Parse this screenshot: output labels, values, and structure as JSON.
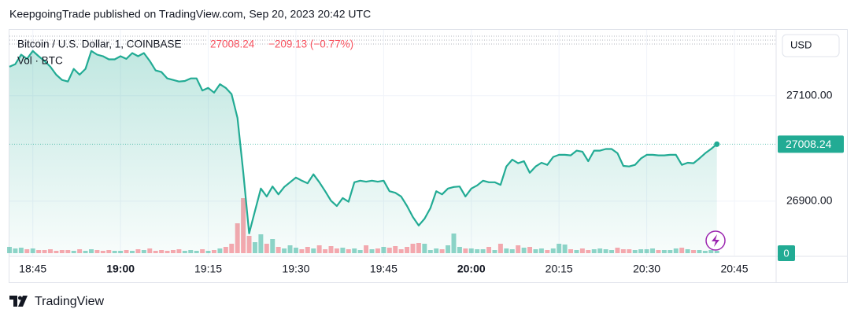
{
  "header": {
    "byline": "KeepgoingTrade published on TradingView.com, Sep 20, 2023 20:42 UTC"
  },
  "chart_data": {
    "type": "line",
    "title": "Bitcoin / U.S. Dollar, 1, COINBASE",
    "change": "−209.13 (−0.77%)",
    "currency": "USD",
    "color": "#22ab94",
    "grid": true,
    "x": [
      "18:41",
      "18:42",
      "18:43",
      "18:44",
      "18:45",
      "18:46",
      "18:47",
      "18:48",
      "18:49",
      "18:50",
      "18:51",
      "18:52",
      "18:53",
      "18:54",
      "18:55",
      "18:56",
      "18:57",
      "18:58",
      "18:59",
      "19:00",
      "19:01",
      "19:02",
      "19:03",
      "19:04",
      "19:05",
      "19:06",
      "19:07",
      "19:08",
      "19:09",
      "19:10",
      "19:11",
      "19:12",
      "19:13",
      "19:14",
      "19:15",
      "19:16",
      "19:17",
      "19:18",
      "19:19",
      "19:20",
      "19:21",
      "19:22",
      "19:23",
      "19:24",
      "19:25",
      "19:26",
      "19:27",
      "19:28",
      "19:29",
      "19:30",
      "19:31",
      "19:32",
      "19:33",
      "19:34",
      "19:35",
      "19:36",
      "19:37",
      "19:38",
      "19:39",
      "19:40",
      "19:41",
      "19:42",
      "19:43",
      "19:44",
      "19:45",
      "19:46",
      "19:47",
      "19:48",
      "19:49",
      "19:50",
      "19:51",
      "19:52",
      "19:53",
      "19:54",
      "19:55",
      "19:56",
      "19:57",
      "19:58",
      "19:59",
      "20:00",
      "20:01",
      "20:02",
      "20:03",
      "20:04",
      "20:05",
      "20:06",
      "20:07",
      "20:08",
      "20:09",
      "20:10",
      "20:11",
      "20:12",
      "20:13",
      "20:14",
      "20:15",
      "20:16",
      "20:17",
      "20:18",
      "20:19",
      "20:20",
      "20:21",
      "20:22",
      "20:23",
      "20:24",
      "20:25",
      "20:26",
      "20:27",
      "20:28",
      "20:29",
      "20:30",
      "20:31",
      "20:32",
      "20:33",
      "20:34",
      "20:35",
      "20:36",
      "20:37",
      "20:38",
      "20:39",
      "20:40",
      "20:41",
      "20:42"
    ],
    "values": [
      27155,
      27160,
      27178,
      27170,
      27185,
      27175,
      27166,
      27155,
      27140,
      27130,
      27127,
      27151,
      27140,
      27151,
      27185,
      27178,
      27175,
      27169,
      27169,
      27175,
      27170,
      27181,
      27175,
      27181,
      27166,
      27148,
      27145,
      27133,
      27130,
      27127,
      27128,
      27133,
      27133,
      27110,
      27115,
      27106,
      27122,
      27115,
      27103,
      27058,
      26954,
      26839,
      26882,
      26924,
      26909,
      26928,
      26913,
      26927,
      26936,
      26945,
      26939,
      26934,
      26951,
      26936,
      26919,
      26901,
      26891,
      26906,
      26899,
      26936,
      26939,
      26937,
      26939,
      26937,
      26939,
      26919,
      26916,
      26909,
      26891,
      26870,
      26854,
      26867,
      26887,
      26919,
      26913,
      26924,
      26927,
      26928,
      26909,
      26924,
      26930,
      26939,
      26936,
      26936,
      26931,
      26966,
      26979,
      26972,
      26976,
      26954,
      26966,
      26973,
      26969,
      26984,
      26988,
      26988,
      26987,
      26996,
      26994,
      26976,
      26996,
      26996,
      26999,
      26999,
      26991,
      26967,
      26966,
      26969,
      26981,
      26988,
      26988,
      26987,
      26987,
      26988,
      26988,
      26969,
      26973,
      26972,
      26981,
      26991,
      26999,
      27008.24
    ],
    "xlim": [
      "18:41",
      "20:52"
    ],
    "xticks": [
      "18:45",
      "19:00",
      "19:15",
      "19:30",
      "19:45",
      "20:00",
      "20:15",
      "20:30",
      "20:45"
    ],
    "ylim": [
      26797,
      27222
    ],
    "yticks": [
      {
        "value": 26900,
        "label": "26900.00"
      },
      {
        "value": 27100,
        "label": "27100.00"
      }
    ],
    "volume": {
      "name": "Vol · BTC",
      "up_color": "rgba(34,171,148,0.5)",
      "down_color": "rgba(247,82,95,0.5)",
      "ylim": [
        0,
        100
      ],
      "yticks": [
        0
      ],
      "values": [
        8,
        6,
        7,
        5,
        6,
        4,
        4,
        5,
        3,
        4,
        4,
        3,
        5,
        3,
        5,
        4,
        3,
        4,
        3,
        3,
        4,
        3,
        5,
        4,
        6,
        3,
        4,
        3,
        4,
        5,
        3,
        4,
        3,
        5,
        3,
        4,
        6,
        8,
        12,
        38,
        70,
        22,
        14,
        24,
        12,
        18,
        8,
        6,
        10,
        7,
        5,
        8,
        6,
        10,
        5,
        9,
        6,
        7,
        5,
        6,
        4,
        10,
        5,
        6,
        8,
        7,
        9,
        5,
        8,
        12,
        13,
        12,
        4,
        6,
        5,
        10,
        25,
        8,
        6,
        6,
        5,
        5,
        8,
        4,
        12,
        6,
        5,
        10,
        7,
        8,
        5,
        6,
        4,
        6,
        12,
        11,
        5,
        4,
        6,
        4,
        5,
        6,
        5,
        4,
        7,
        5,
        5,
        4,
        5,
        5,
        6,
        4,
        4,
        4,
        6,
        7,
        5,
        4,
        4,
        3,
        4,
        3
      ]
    }
  },
  "footer": {
    "brand": "TradingView"
  }
}
